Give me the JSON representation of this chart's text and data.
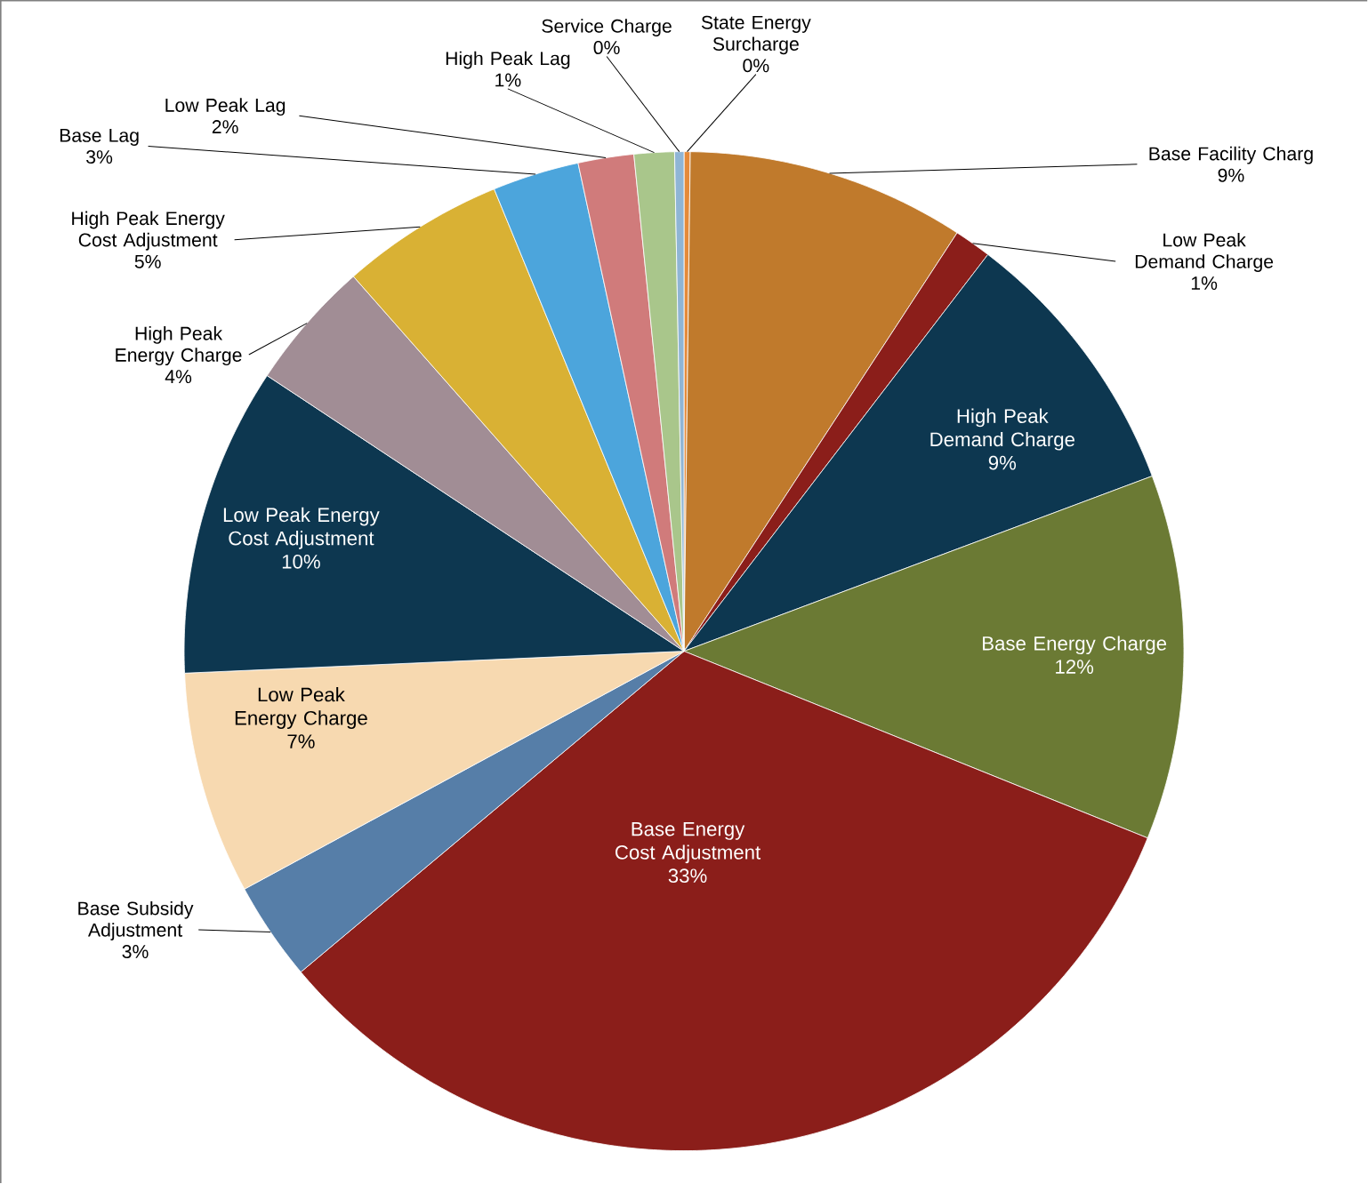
{
  "chart_data": {
    "type": "pie",
    "categories": [
      "State Energy Surcharge",
      "Base Facility Charg",
      "Low Peak Demand Charge",
      "High Peak Demand Charge",
      "Base Energy Charge",
      "Base Energy Cost Adjustment",
      "Base Subsidy Adjustment",
      "Low Peak Energy Charge",
      "Low Peak Energy Cost Adjustment",
      "High Peak Energy Charge",
      "High Peak Energy Cost Adjustment",
      "Base Lag",
      "Low Peak Lag",
      "High Peak Lag",
      "Service Charge"
    ],
    "values": [
      0.2,
      9.0,
      1.2,
      8.9,
      11.8,
      32.8,
      3.2,
      7.2,
      10.0,
      4.2,
      5.3,
      2.8,
      1.8,
      1.3,
      0.3
    ],
    "value_labels": [
      "0%",
      "9%",
      "1%",
      "9%",
      "12%",
      "33%",
      "3%",
      "7%",
      "10%",
      "4%",
      "5%",
      "3%",
      "2%",
      "1%",
      "0%"
    ],
    "colors": [
      "#e58a3a",
      "#c07a2c",
      "#8b1e1a",
      "#0d3750",
      "#6b7a34",
      "#8b1e1a",
      "#567ea8",
      "#f7d9b0",
      "#0d3750",
      "#a18d95",
      "#d9b134",
      "#4ca5dc",
      "#d07b7b",
      "#a9c68b",
      "#8fb5d5"
    ]
  }
}
